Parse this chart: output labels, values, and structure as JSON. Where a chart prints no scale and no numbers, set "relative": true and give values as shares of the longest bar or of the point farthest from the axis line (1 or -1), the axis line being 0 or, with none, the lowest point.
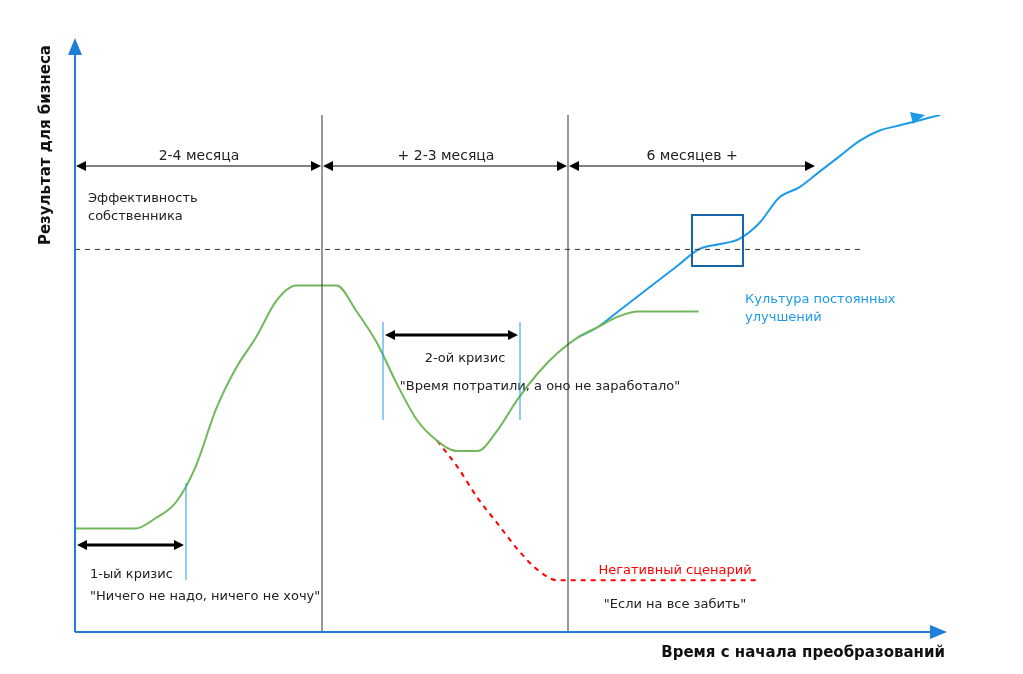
{
  "chart_data": {
    "type": "line",
    "relative": true,
    "legend": false,
    "marker": "none",
    "xlabel": "Время с начала преобразований",
    "ylabel": "Результат для бизнеса",
    "categories": [
      null,
      null,
      null,
      null,
      null,
      null,
      null,
      null,
      null,
      null,
      null,
      null,
      null,
      null,
      null,
      null,
      null,
      null,
      null,
      null,
      null,
      null,
      null,
      null,
      null,
      null,
      null,
      null,
      null,
      null,
      null,
      null,
      null,
      null,
      null,
      null,
      null,
      null,
      null,
      null,
      null,
      null,
      null,
      null
    ],
    "series": [
      {
        "color": "#70b85a",
        "line_style": "solid",
        "values": [
          0.2,
          0.2,
          0.2,
          0.2,
          0.22,
          0.25,
          0.32,
          0.43,
          0.51,
          0.57,
          0.64,
          0.67,
          0.67,
          0.67,
          0.62,
          0.56,
          0.48,
          0.41,
          0.37,
          0.35,
          0.35,
          0.39,
          0.45,
          0.5,
          0.54,
          0.57,
          0.59,
          0.61,
          0.62,
          0.62,
          0.62,
          0.62,
          null,
          null,
          null,
          null,
          null,
          null,
          null,
          null,
          null,
          null,
          null,
          null
        ]
      },
      {
        "name": "Негативный сценарий",
        "color": "#ff0000",
        "line_style": "dashed",
        "values": [
          null,
          null,
          null,
          null,
          null,
          null,
          null,
          null,
          null,
          null,
          null,
          null,
          null,
          null,
          null,
          null,
          null,
          null,
          0.37,
          0.32,
          0.26,
          0.21,
          0.16,
          0.12,
          0.1,
          0.1,
          0.1,
          0.1,
          0.1,
          0.1,
          0.1,
          0.1,
          0.1,
          0.1,
          0.1,
          null,
          null,
          null,
          null,
          null,
          null,
          null,
          null,
          null
        ]
      },
      {
        "name": "Культура постоянных улучшений",
        "color": "#1e9be8",
        "line_style": "solid",
        "values": [
          null,
          null,
          null,
          null,
          null,
          null,
          null,
          null,
          null,
          null,
          null,
          null,
          null,
          null,
          null,
          null,
          null,
          null,
          null,
          null,
          null,
          null,
          null,
          null,
          null,
          0.57,
          0.59,
          0.62,
          0.65,
          0.68,
          0.71,
          0.74,
          0.75,
          0.76,
          0.79,
          0.84,
          0.86,
          0.89,
          0.92,
          0.95,
          0.97,
          0.98,
          0.99,
          1
        ]
      }
    ],
    "ref_lines": [
      {
        "axis": "y",
        "value": 0.74,
        "label": "Эффективность собственника",
        "color": "#333333",
        "line_style": "dashed"
      }
    ],
    "annotations": [
      "2-4 месяца",
      "+ 2-3 месяца",
      "6 месяцев +",
      "1-ый кризис",
      "\"Ничего не надо, ничего не хочу\"",
      "2-ой кризис",
      "\"Время потратили, а оно не заработало\"",
      "\"Если на все забить\""
    ]
  }
}
